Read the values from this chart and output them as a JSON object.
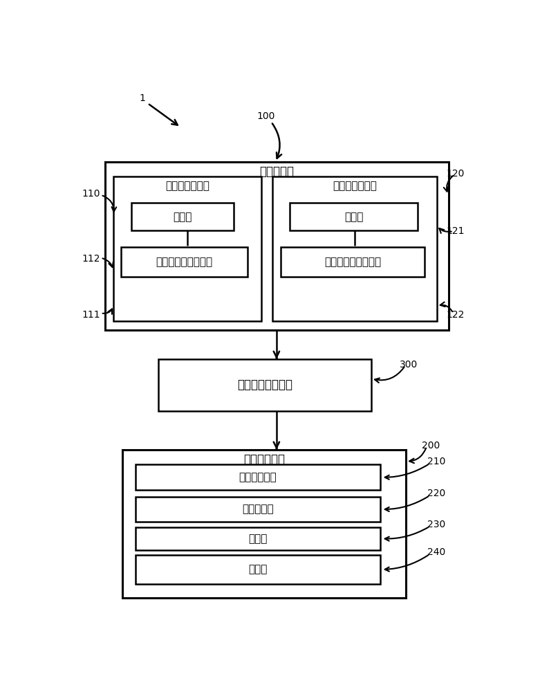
{
  "bg_color": "#ffffff",
  "line_color": "#000000",
  "font_size_large": 12,
  "font_size_medium": 11,
  "font_size_small": 10,
  "label_1": "1",
  "label_100": "100",
  "label_110": "110",
  "label_111": "111",
  "label_112": "112",
  "label_120": "120",
  "label_121": "121",
  "label_122": "122",
  "label_200": "200",
  "label_210": "210",
  "label_220": "220",
  "label_230": "230",
  "label_240": "240",
  "label_300": "300",
  "text_ku": "库存储系统",
  "text_biaozhun_yao": "标准药品光谱库",
  "text_biaozhun_wu": "标准物质光谱库",
  "text_suosuo1": "搜索部",
  "text_suosuo2": "搜索部",
  "text_cunchu1": "标准药品光谱存储部",
  "text_cunchu2": "标准物质光谱存储部",
  "text_yaopin": "药品真伪判定系统",
  "text_guangpu_cai": "光谱采集系统",
  "text_tiaoxi": "条形码识别部",
  "text_guangpu": "光谱采集部",
  "text_zancun": "暂存部",
  "text_shangchuan": "上传部"
}
